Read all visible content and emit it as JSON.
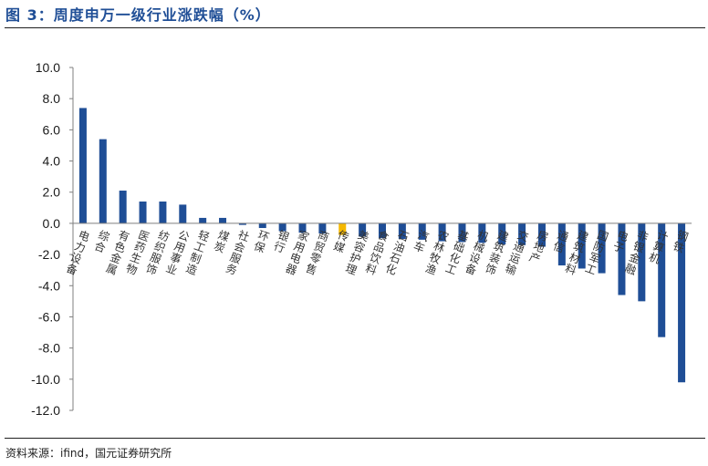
{
  "header": {
    "title": "图 3：周度申万一级行业涨跌幅（%）"
  },
  "footer": {
    "source": "资料来源：ifind，国元证券研究所"
  },
  "colors": {
    "title": "#1f4e96",
    "bar": "#1f4e96",
    "highlight": "#f5b800"
  },
  "chart_data": {
    "type": "bar",
    "title": "",
    "xlabel": "",
    "ylabel": "",
    "ylim": [
      -12,
      10
    ],
    "yticks": [
      "10.0",
      "8.0",
      "6.0",
      "4.0",
      "2.0",
      "0.0",
      "-2.0",
      "-4.0",
      "-6.0",
      "-8.0",
      "-10.0",
      "-12.0"
    ],
    "grid": false,
    "categories": [
      "电力设备",
      "综合",
      "有色金属",
      "医药生物",
      "纺织服饰",
      "公用事业",
      "轻工制造",
      "煤炭",
      "社会服务",
      "环保",
      "银行",
      "家用电器",
      "商贸零售",
      "传媒",
      "美容护理",
      "食品饮料",
      "石油石化",
      "汽车",
      "农林牧渔",
      "基础化工",
      "机械设备",
      "建筑装饰",
      "交通运输",
      "房地产",
      "通信",
      "建筑材料",
      "国防军工",
      "电子",
      "非银金融",
      "计算机",
      "钢铁"
    ],
    "values": [
      7.4,
      5.4,
      2.1,
      1.4,
      1.4,
      1.2,
      0.35,
      0.35,
      -0.1,
      -0.3,
      -0.5,
      -0.6,
      -0.65,
      -0.75,
      -0.85,
      -0.95,
      -1.0,
      -1.05,
      -1.15,
      -1.2,
      -1.25,
      -1.35,
      -1.4,
      -1.5,
      -2.7,
      -2.9,
      -3.2,
      -4.6,
      -5.0,
      -7.3,
      -10.2
    ],
    "highlight_category": "传媒"
  }
}
